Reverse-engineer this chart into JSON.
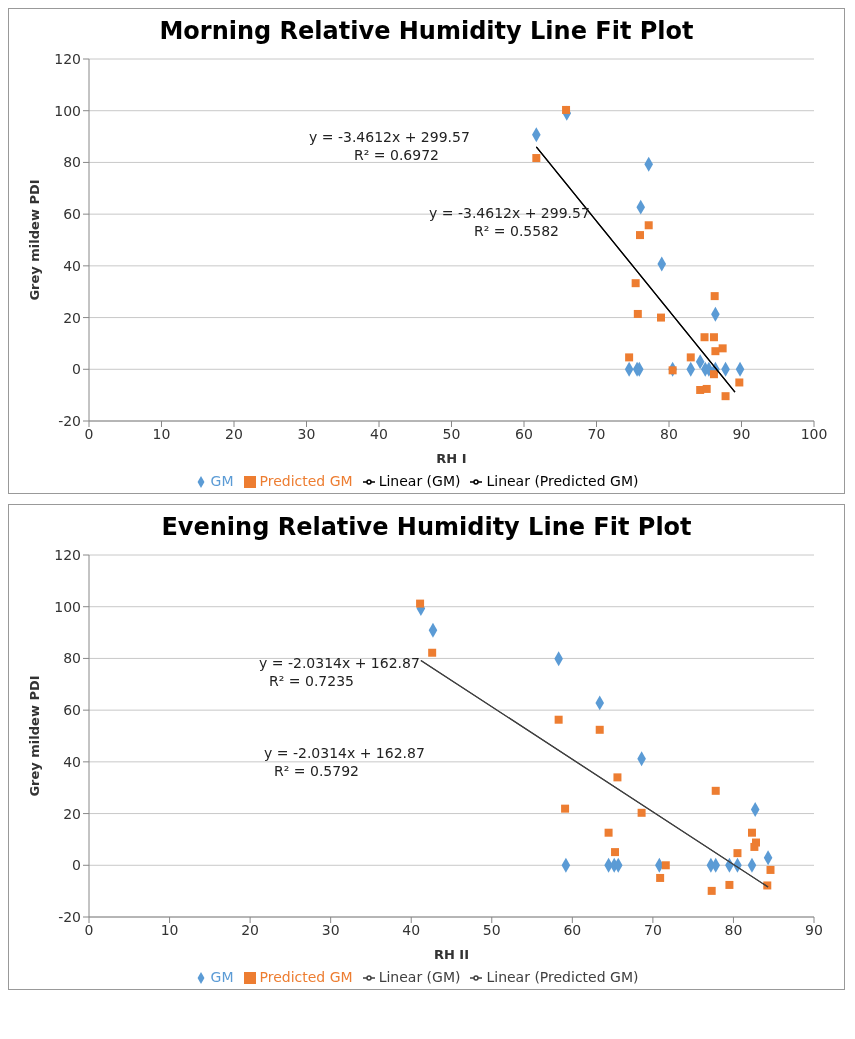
{
  "chart_data": [
    {
      "type": "scatter",
      "title": "Morning Relative Humidity Line Fit Plot",
      "xlabel": "RH I",
      "ylabel": "Grey mildew PDI",
      "xlim": [
        0,
        100
      ],
      "xticks": [
        0,
        10,
        20,
        30,
        40,
        50,
        60,
        70,
        80,
        90,
        100
      ],
      "ylim": [
        -20,
        120
      ],
      "yticks": [
        -20,
        0,
        20,
        40,
        60,
        80,
        100,
        120
      ],
      "grid": "y",
      "legend": "bottom",
      "annotations": [
        "y = -3.4612x + 299.57",
        "R² = 0.6972",
        "y = -3.4612x + 299.57",
        "R² = 0.5582"
      ],
      "series": [
        {
          "name": "GM",
          "type": "scatter",
          "marker": "diamond",
          "color": "#5b9bd5",
          "x": [
            61.7,
            65.9,
            77.2,
            76.1,
            79,
            86.4,
            74.5,
            75.6,
            75.9,
            80.5,
            83,
            84.3,
            85,
            85.5,
            86.4,
            87.8,
            89.8
          ],
          "values": [
            90.7,
            99,
            79.3,
            62.7,
            40.7,
            21.3,
            0,
            0,
            0,
            0,
            0,
            2.9,
            0,
            0,
            0,
            0,
            0
          ]
        },
        {
          "name": "Predicted GM",
          "type": "scatter",
          "marker": "square",
          "color": "#ed7d31",
          "x": [
            65.8,
            61.7,
            77.2,
            76,
            75.4,
            75.7,
            78.9,
            86.3,
            84.9,
            86.2,
            86.4,
            87.4,
            74.5,
            83,
            80.5,
            86.2,
            89.7,
            84.3,
            85.2,
            87.8
          ],
          "values": [
            100.3,
            81.7,
            55.7,
            51.9,
            33.3,
            21.4,
            20,
            28.3,
            12.4,
            12.4,
            7,
            8.1,
            4.6,
            4.6,
            -0.4,
            -1.9,
            -5.1,
            -8,
            -7.6,
            -10.4
          ]
        },
        {
          "name": "Linear (GM)",
          "type": "line",
          "marker": "none",
          "line_style": "solid",
          "color": "#000000",
          "x": [
            61.7,
            89.1
          ],
          "values": [
            86,
            -8.8
          ]
        },
        {
          "name": "Linear (Predicted GM)",
          "type": "line",
          "marker": "none",
          "line_style": "solid",
          "color": "#000000",
          "x": [
            61.7,
            89.1
          ],
          "values": [
            86,
            -8.8
          ]
        }
      ]
    },
    {
      "type": "scatter",
      "title": "Evening Relative Humidity Line Fit Plot",
      "xlabel": "RH II",
      "ylabel": "Grey mildew PDI",
      "xlim": [
        0,
        90
      ],
      "xticks": [
        0,
        10,
        20,
        30,
        40,
        50,
        60,
        70,
        80,
        90
      ],
      "ylim": [
        -20,
        120
      ],
      "yticks": [
        -20,
        0,
        20,
        40,
        60,
        80,
        100,
        120
      ],
      "grid": "y",
      "legend": "bottom",
      "annotations": [
        "y = -2.0314x + 162.87",
        "R² = 0.7235",
        "y = -2.0314x + 162.87",
        "R² = 0.5792"
      ],
      "series": [
        {
          "name": "GM",
          "type": "scatter",
          "marker": "diamond",
          "color": "#5b9bd5",
          "x": [
            41.2,
            42.7,
            58.3,
            63.4,
            68.6,
            82.7,
            84.3,
            59.2,
            64.5,
            65.2,
            65.7,
            70.8,
            77.2,
            77.8,
            79.5,
            80.5,
            82.3
          ],
          "values": [
            99.3,
            90.9,
            79.9,
            62.8,
            41.2,
            21.6,
            2.9,
            0,
            0,
            0,
            0,
            0,
            0,
            0,
            0,
            0,
            0
          ]
        },
        {
          "name": "Predicted GM",
          "type": "scatter",
          "marker": "square",
          "color": "#ed7d31",
          "x": [
            41.1,
            42.6,
            58.3,
            63.4,
            65.6,
            59.1,
            68.6,
            77.8,
            64.5,
            65.3,
            82.3,
            82.8,
            82.6,
            80.5,
            71.6,
            84.6,
            70.9,
            77.3,
            79.5,
            84.2
          ],
          "values": [
            101.2,
            82.2,
            56.3,
            52.4,
            34,
            21.9,
            20.3,
            28.8,
            12.6,
            5.1,
            12.6,
            8.8,
            7.1,
            4.7,
            0,
            -1.8,
            -4.9,
            -9.9,
            -7.6,
            -7.8
          ]
        },
        {
          "name": "Linear (GM)",
          "type": "line",
          "marker": "none",
          "line_style": "solid",
          "color": "#404040",
          "x": [
            41.2,
            84.3
          ],
          "values": [
            79.2,
            -8.4
          ]
        },
        {
          "name": "Linear (Predicted GM)",
          "type": "line",
          "marker": "none",
          "line_style": "solid",
          "color": "#404040",
          "x": [
            41.2,
            84.3
          ],
          "values": [
            79.2,
            -8.4
          ]
        }
      ]
    }
  ]
}
